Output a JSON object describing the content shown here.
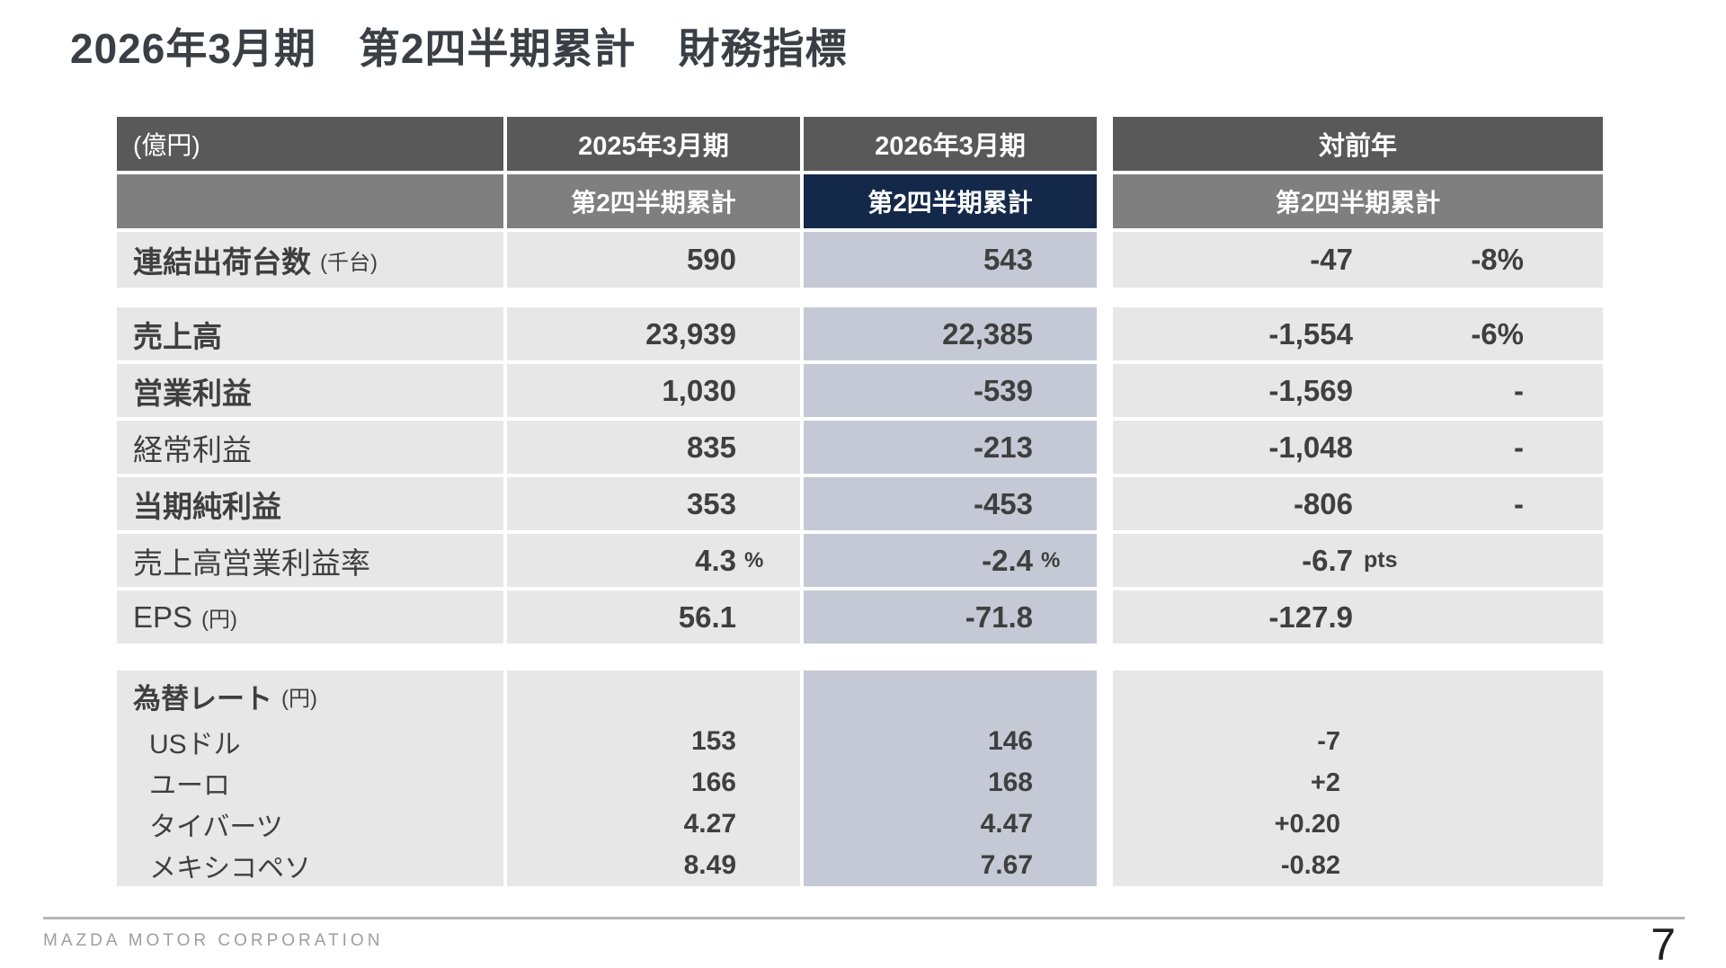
{
  "slide": {
    "title": "2026年3月期　第2四半期累計　財務指標",
    "company": "MAZDA MOTOR CORPORATION",
    "page_number": "7"
  },
  "table": {
    "unit_note": "(億円)",
    "columns": {
      "fy25": "2025年3月期",
      "fy26": "2026年3月期",
      "yoy": "対前年",
      "subheader": "第2四半期累計"
    },
    "rows": [
      {
        "label": "連結出荷台数",
        "unit": "(千台)",
        "fy25": "590",
        "fy26": "543",
        "diff": "-47",
        "pct": "-8%"
      },
      {
        "label": "売上高",
        "fy25": "23,939",
        "fy26": "22,385",
        "diff": "-1,554",
        "pct": "-6%"
      },
      {
        "label": "営業利益",
        "fy25": "1,030",
        "fy26": "-539",
        "diff": "-1,569",
        "pct": "-"
      },
      {
        "label": "経常利益",
        "fy25": "835",
        "fy26": "-213",
        "diff": "-1,048",
        "pct": "-"
      },
      {
        "label": "当期純利益",
        "fy25": "353",
        "fy26": "-453",
        "diff": "-806",
        "pct": "-"
      },
      {
        "label": "売上高営業利益率",
        "fy25": "4.3",
        "fy25_unit": "%",
        "fy26": "-2.4",
        "fy26_unit": "%",
        "diff": "-6.7",
        "diff_unit": "pts",
        "pct": ""
      },
      {
        "label": "EPS",
        "unit": "(円)",
        "fy25": "56.1",
        "fy26": "-71.8",
        "diff": "-127.9",
        "pct": ""
      }
    ],
    "fx": {
      "label": "為替レート",
      "unit": "(円)",
      "rows": [
        {
          "label": "USドル",
          "fy25": "153",
          "fy26": "146",
          "diff": "-7"
        },
        {
          "label": "ユーロ",
          "fy25": "166",
          "fy26": "168",
          "diff": "+2"
        },
        {
          "label": "タイバーツ",
          "fy25": "4.27",
          "fy26": "4.47",
          "diff": "+0.20"
        },
        {
          "label": "メキシコペソ",
          "fy25": "8.49",
          "fy26": "7.67",
          "diff": "-0.82"
        }
      ]
    }
  },
  "colors": {
    "header_dark": "#595959",
    "header_medium": "#7f7f7f",
    "accent_navy": "#14294a",
    "cell_gray": "#e7e7e7",
    "cell_blue_gray": "#c5c9d5",
    "text": "#3f3f3f"
  }
}
